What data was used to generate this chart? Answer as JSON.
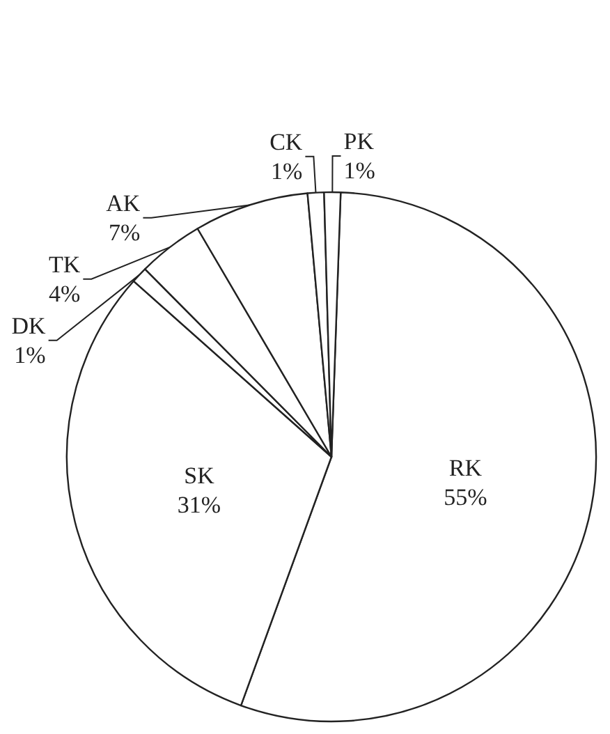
{
  "chart_data": {
    "type": "pie",
    "categories": [
      "RK",
      "SK",
      "DK",
      "TK",
      "AK",
      "CK",
      "PK"
    ],
    "values": [
      55,
      31,
      1,
      4,
      7,
      1,
      1
    ],
    "value_labels": [
      "55%",
      "31%",
      "1%",
      "4%",
      "7%",
      "1%",
      "1%"
    ],
    "colors": [
      "#ffffff",
      "#ffffff",
      "#ffffff",
      "#ffffff",
      "#ffffff",
      "#ffffff",
      "#ffffff"
    ]
  }
}
